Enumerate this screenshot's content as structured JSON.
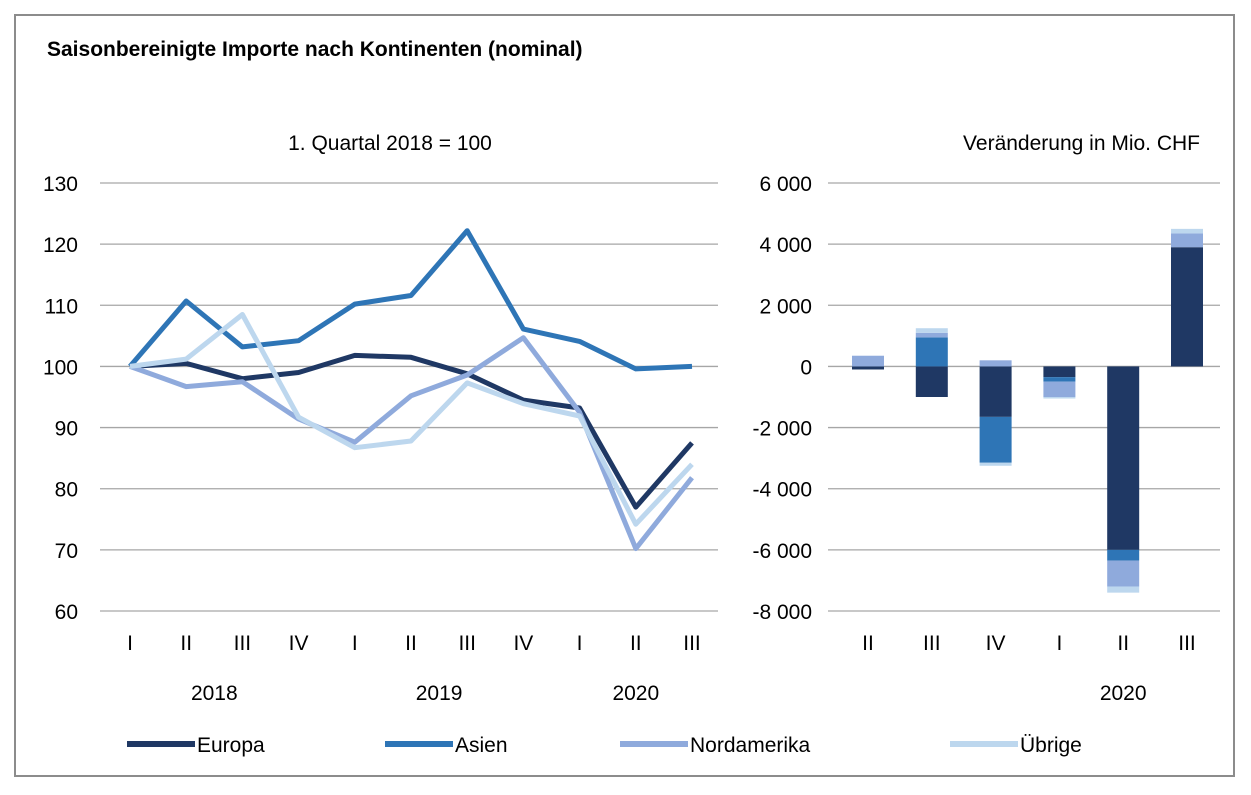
{
  "title": "Saisonbereinigte Importe nach Kontinenten (nominal)",
  "colors": {
    "Europa": "#1f3864",
    "Asien": "#2e75b6",
    "Nordamerika": "#8faadc",
    "Übrige": "#bdd7ee",
    "grid": "#a6a6a6"
  },
  "chart_data": [
    {
      "type": "line",
      "subtitle": "1. Quartal 2018 = 100",
      "x_ticks": [
        "I",
        "II",
        "III",
        "IV",
        "I",
        "II",
        "III",
        "IV",
        "I",
        "II",
        "III"
      ],
      "year_labels": [
        {
          "label": "2018",
          "tick_index": 1.5
        },
        {
          "label": "2019",
          "tick_index": 5.5
        },
        {
          "label": "2020",
          "tick_index": 9
        }
      ],
      "ylim": [
        60,
        130
      ],
      "y_ticks": [
        "60",
        "70",
        "80",
        "90",
        "100",
        "110",
        "120",
        "130"
      ],
      "grid": true,
      "series": [
        {
          "name": "Europa",
          "values": [
            100,
            100.5,
            98,
            99,
            101.8,
            101.5,
            98.8,
            94.5,
            93.2,
            77,
            87.5
          ]
        },
        {
          "name": "Asien",
          "values": [
            100,
            110.7,
            103.2,
            104.2,
            110.2,
            111.6,
            122.2,
            106.1,
            104.1,
            99.6,
            100
          ]
        },
        {
          "name": "Nordamerika",
          "values": [
            100,
            96.7,
            97.5,
            91.4,
            87.6,
            95.2,
            98.6,
            104.7,
            92.5,
            70.2,
            81.8
          ]
        },
        {
          "name": "Übrige",
          "values": [
            100,
            101.2,
            108.5,
            91.7,
            86.7,
            87.8,
            97.3,
            93.9,
            91.9,
            74.2,
            84
          ]
        }
      ]
    },
    {
      "type": "bar",
      "stacked": true,
      "subtitle": "Veränderung in Mio. CHF",
      "categories": [
        "II",
        "III",
        "IV",
        "I",
        "II",
        "III"
      ],
      "year_labels": [
        {
          "label": "2020",
          "category_index": 4
        }
      ],
      "ylim": [
        -8000,
        6000
      ],
      "y_ticks": [
        "-8 000",
        "-6 000",
        "-4 000",
        "-2 000",
        "0",
        "2 000",
        "4 000",
        "6 000"
      ],
      "grid": true,
      "series": [
        {
          "name": "Europa",
          "values": [
            -100,
            -1000,
            -1650,
            -350,
            -6000,
            3900
          ]
        },
        {
          "name": "Asien",
          "values": [
            0,
            950,
            -1500,
            -150,
            -350,
            0
          ]
        },
        {
          "name": "Nordamerika",
          "values": [
            350,
            150,
            200,
            -500,
            -850,
            450
          ]
        },
        {
          "name": "Übrige",
          "values": [
            0,
            150,
            -100,
            -50,
            -200,
            150
          ]
        }
      ]
    }
  ],
  "legend": [
    {
      "name": "Europa",
      "label": "Europa"
    },
    {
      "name": "Asien",
      "label": "Asien"
    },
    {
      "name": "Nordamerika",
      "label": "Nordamerika"
    },
    {
      "name": "Übrige",
      "label": "Übrige"
    }
  ]
}
